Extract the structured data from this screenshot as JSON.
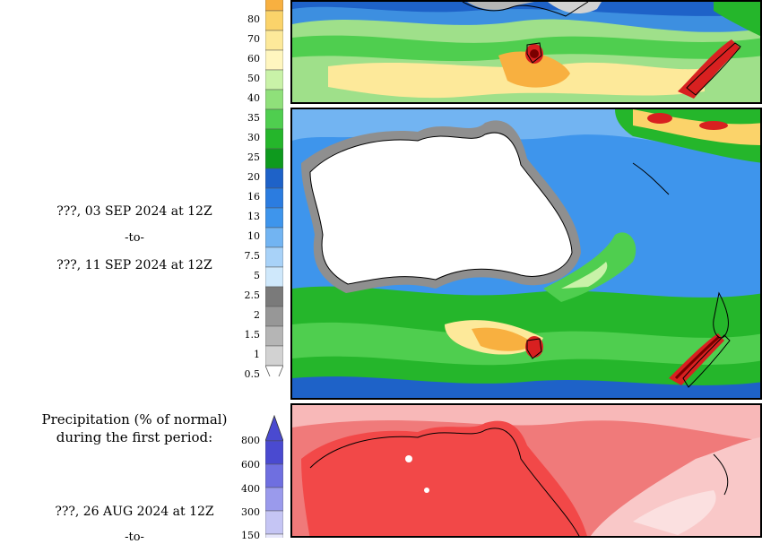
{
  "panel_mid": {
    "period_start": "???, 03 SEP 2024 at 12Z",
    "to_text": "-to-",
    "period_end": "???, 11 SEP 2024 at 12Z"
  },
  "panel_bottom": {
    "title_line1": "Precipitation (% of normal)",
    "title_line2": "during the first period:",
    "period_start": "???, 26 AUG 2024 at 12Z",
    "to_text": "-to-"
  },
  "legend_precip": {
    "levels": [
      "80",
      "70",
      "60",
      "50",
      "40",
      "35",
      "30",
      "25",
      "20",
      "16",
      "13",
      "10",
      "7.5",
      "5",
      "2.5",
      "2",
      "1.5",
      "1",
      "0.5"
    ],
    "colors": [
      "#f8b040",
      "#fbd36a",
      "#fde99a",
      "#fff6bf",
      "#c9f2a8",
      "#8fe07a",
      "#4fce4f",
      "#25b62b",
      "#0e9a1e",
      "#1e62c8",
      "#2b7ce0",
      "#3e95ec",
      "#72b4f2",
      "#a8d2f8",
      "#cfe8fb",
      "#7a7a7a",
      "#979797",
      "#b5b5b5",
      "#d2d2d2"
    ],
    "bottom_color": "#ffffff"
  },
  "legend_pct": {
    "levels": [
      "800",
      "600",
      "400",
      "300",
      "150"
    ],
    "colors": [
      "#4a4ad0",
      "#6f6fe0",
      "#9a9aec",
      "#c5c5f4",
      "#e6e6fa"
    ]
  }
}
